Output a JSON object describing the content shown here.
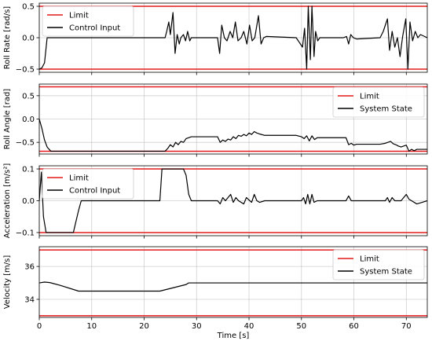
{
  "chart_data": [
    {
      "type": "line",
      "title": "",
      "xlabel": "",
      "ylabel": "Roll Rate [rad/s]",
      "xlim": [
        0,
        74
      ],
      "ylim": [
        -0.55,
        0.55
      ],
      "xticks": [
        0,
        10,
        20,
        30,
        40,
        50,
        60,
        70
      ],
      "xtick_labels": [
        "",
        "",
        "",
        "",
        "",
        "",
        "",
        ""
      ],
      "yticks": [
        -0.5,
        0.0,
        0.5
      ],
      "ytick_labels": [
        "−0.5",
        "0.0",
        "0.5"
      ],
      "grid": true,
      "legend": "top-left",
      "limits": {
        "name": "Limit",
        "color": "#e41a1c",
        "values": [
          0.5,
          -0.5
        ]
      },
      "series": [
        {
          "name": "Control Input",
          "color": "#000000",
          "points": [
            [
              0,
              -0.5
            ],
            [
              0.5,
              -0.48
            ],
            [
              1,
              -0.4
            ],
            [
              1.5,
              0
            ],
            [
              24,
              0
            ],
            [
              24.3,
              0.1
            ],
            [
              24.7,
              0.25
            ],
            [
              25,
              0.05
            ],
            [
              25.5,
              0.4
            ],
            [
              25.9,
              -0.25
            ],
            [
              26.3,
              0.05
            ],
            [
              26.7,
              -0.1
            ],
            [
              27,
              0
            ],
            [
              27.5,
              0.05
            ],
            [
              27.9,
              -0.05
            ],
            [
              28.3,
              0.1
            ],
            [
              28.7,
              -0.05
            ],
            [
              29,
              0
            ],
            [
              34,
              0
            ],
            [
              34.4,
              -0.25
            ],
            [
              34.8,
              0.2
            ],
            [
              35.3,
              0
            ],
            [
              35.8,
              -0.05
            ],
            [
              36.4,
              0.1
            ],
            [
              36.9,
              0
            ],
            [
              37.4,
              0.25
            ],
            [
              37.9,
              -0.05
            ],
            [
              38.5,
              0
            ],
            [
              39,
              0.1
            ],
            [
              39.6,
              -0.1
            ],
            [
              40.1,
              0.2
            ],
            [
              40.6,
              -0.05
            ],
            [
              41.1,
              0
            ],
            [
              41.8,
              0.35
            ],
            [
              42.3,
              -0.1
            ],
            [
              42.8,
              0
            ],
            [
              43.3,
              0.02
            ],
            [
              49,
              0
            ],
            [
              50.2,
              -0.15
            ],
            [
              50.6,
              0.15
            ],
            [
              51,
              -0.5
            ],
            [
              51.3,
              0.5
            ],
            [
              51.7,
              -0.35
            ],
            [
              52,
              0.5
            ],
            [
              52.4,
              -0.3
            ],
            [
              52.7,
              0.1
            ],
            [
              53.1,
              -0.05
            ],
            [
              53.5,
              0
            ],
            [
              58,
              0
            ],
            [
              58.6,
              0.02
            ],
            [
              59,
              -0.1
            ],
            [
              59.4,
              0.05
            ],
            [
              59.9,
              0
            ],
            [
              60.5,
              -0.02
            ],
            [
              65,
              0
            ],
            [
              65.6,
              0.1
            ],
            [
              66,
              0.2
            ],
            [
              66.4,
              0.3
            ],
            [
              66.8,
              -0.2
            ],
            [
              67.3,
              0.1
            ],
            [
              67.8,
              -0.15
            ],
            [
              68.3,
              0
            ],
            [
              68.8,
              -0.3
            ],
            [
              69.3,
              0.02
            ],
            [
              69.9,
              0.3
            ],
            [
              70.3,
              -0.5
            ],
            [
              70.7,
              0.25
            ],
            [
              71.2,
              -0.05
            ],
            [
              71.7,
              0.1
            ],
            [
              72.2,
              0
            ],
            [
              72.7,
              0.05
            ],
            [
              74,
              0
            ]
          ]
        }
      ]
    },
    {
      "type": "line",
      "title": "",
      "xlabel": "",
      "ylabel": "Roll Angle [rad]",
      "xlim": [
        0,
        74
      ],
      "ylim": [
        -0.75,
        0.75
      ],
      "xticks": [
        0,
        10,
        20,
        30,
        40,
        50,
        60,
        70
      ],
      "xtick_labels": [
        "",
        "",
        "",
        "",
        "",
        "",
        "",
        ""
      ],
      "yticks": [
        -0.5,
        0.0,
        0.5
      ],
      "ytick_labels": [
        "−0.5",
        "0.0",
        "0.5"
      ],
      "grid": true,
      "legend": "top-right",
      "limits": {
        "name": "Limit",
        "color": "#e41a1c",
        "values": [
          0.69,
          -0.69
        ]
      },
      "series": [
        {
          "name": "System State",
          "color": "#000000",
          "points": [
            [
              0,
              0
            ],
            [
              0.5,
              -0.2
            ],
            [
              1,
              -0.45
            ],
            [
              1.5,
              -0.6
            ],
            [
              2.2,
              -0.69
            ],
            [
              24,
              -0.69
            ],
            [
              24.5,
              -0.63
            ],
            [
              25,
              -0.55
            ],
            [
              25.5,
              -0.6
            ],
            [
              26,
              -0.5
            ],
            [
              26.5,
              -0.55
            ],
            [
              27,
              -0.48
            ],
            [
              27.5,
              -0.5
            ],
            [
              28,
              -0.42
            ],
            [
              29,
              -0.38
            ],
            [
              34,
              -0.38
            ],
            [
              34.5,
              -0.5
            ],
            [
              35,
              -0.45
            ],
            [
              35.5,
              -0.48
            ],
            [
              36,
              -0.43
            ],
            [
              36.5,
              -0.45
            ],
            [
              37,
              -0.38
            ],
            [
              37.5,
              -0.42
            ],
            [
              38,
              -0.35
            ],
            [
              38.5,
              -0.37
            ],
            [
              39,
              -0.33
            ],
            [
              39.5,
              -0.36
            ],
            [
              40,
              -0.3
            ],
            [
              40.5,
              -0.33
            ],
            [
              41,
              -0.27
            ],
            [
              41.5,
              -0.3
            ],
            [
              42,
              -0.32
            ],
            [
              43,
              -0.35
            ],
            [
              49,
              -0.35
            ],
            [
              50,
              -0.38
            ],
            [
              50.5,
              -0.42
            ],
            [
              51,
              -0.36
            ],
            [
              51.5,
              -0.47
            ],
            [
              52,
              -0.36
            ],
            [
              52.5,
              -0.44
            ],
            [
              53,
              -0.4
            ],
            [
              58.5,
              -0.4
            ],
            [
              59,
              -0.55
            ],
            [
              59.5,
              -0.52
            ],
            [
              60,
              -0.56
            ],
            [
              60.5,
              -0.54
            ],
            [
              65,
              -0.54
            ],
            [
              66,
              -0.52
            ],
            [
              67,
              -0.48
            ],
            [
              67.5,
              -0.53
            ],
            [
              68,
              -0.55
            ],
            [
              68.5,
              -0.58
            ],
            [
              69,
              -0.6
            ],
            [
              70,
              -0.56
            ],
            [
              70.5,
              -0.69
            ],
            [
              71,
              -0.65
            ],
            [
              71.5,
              -0.68
            ],
            [
              72,
              -0.65
            ],
            [
              74,
              -0.65
            ]
          ]
        }
      ]
    },
    {
      "type": "line",
      "title": "",
      "xlabel": "",
      "ylabel": "Acceleration [m/s²]",
      "xlim": [
        0,
        74
      ],
      "ylim": [
        -0.11,
        0.11
      ],
      "xticks": [
        0,
        10,
        20,
        30,
        40,
        50,
        60,
        70
      ],
      "xtick_labels": [
        "",
        "",
        "",
        "",
        "",
        "",
        "",
        ""
      ],
      "yticks": [
        -0.1,
        0.0,
        0.1
      ],
      "ytick_labels": [
        "−0.1",
        "0.0",
        "0.1"
      ],
      "grid": true,
      "legend": "top-left",
      "limits": {
        "name": "Limit",
        "color": "#e41a1c",
        "values": [
          0.1,
          -0.1
        ]
      },
      "series": [
        {
          "name": "Control Input",
          "color": "#000000",
          "points": [
            [
              0,
              0
            ],
            [
              0.4,
              0.09
            ],
            [
              0.8,
              -0.05
            ],
            [
              1.3,
              -0.1
            ],
            [
              6.5,
              -0.1
            ],
            [
              7.5,
              -0.03
            ],
            [
              8,
              0
            ],
            [
              23,
              0
            ],
            [
              23.4,
              0.1
            ],
            [
              27.5,
              0.1
            ],
            [
              28,
              0.08
            ],
            [
              28.5,
              0.02
            ],
            [
              29,
              0
            ],
            [
              34,
              0
            ],
            [
              34.5,
              -0.01
            ],
            [
              35,
              0.01
            ],
            [
              35.5,
              0
            ],
            [
              36.5,
              0.02
            ],
            [
              37,
              -0.005
            ],
            [
              37.5,
              0.01
            ],
            [
              38,
              0
            ],
            [
              39,
              -0.01
            ],
            [
              39.5,
              0.01
            ],
            [
              40.5,
              -0.005
            ],
            [
              41,
              0.02
            ],
            [
              41.5,
              0
            ],
            [
              42,
              -0.005
            ],
            [
              43,
              0
            ],
            [
              50,
              0
            ],
            [
              50.4,
              0.01
            ],
            [
              50.8,
              -0.01
            ],
            [
              51.2,
              0.02
            ],
            [
              51.6,
              -0.01
            ],
            [
              52,
              0.02
            ],
            [
              52.4,
              -0.005
            ],
            [
              53,
              0
            ],
            [
              58.5,
              0
            ],
            [
              59,
              0.015
            ],
            [
              59.5,
              0
            ],
            [
              66,
              0
            ],
            [
              66.4,
              0.01
            ],
            [
              66.8,
              -0.005
            ],
            [
              67.3,
              0.01
            ],
            [
              67.8,
              0
            ],
            [
              69,
              0
            ],
            [
              70,
              0.02
            ],
            [
              70.5,
              0.005
            ],
            [
              71,
              0
            ],
            [
              72,
              -0.01
            ],
            [
              73,
              -0.005
            ],
            [
              74,
              0
            ]
          ]
        }
      ]
    },
    {
      "type": "line",
      "title": "",
      "xlabel": "Time [s]",
      "ylabel": "Velocity [m/s]",
      "xlim": [
        0,
        74
      ],
      "ylim": [
        32.9,
        37.2
      ],
      "xticks": [
        0,
        10,
        20,
        30,
        40,
        50,
        60,
        70
      ],
      "xtick_labels": [
        "0",
        "10",
        "20",
        "30",
        "40",
        "50",
        "60",
        "70"
      ],
      "yticks": [
        34,
        36
      ],
      "ytick_labels": [
        "34",
        "36"
      ],
      "grid": true,
      "legend": "top-right",
      "limits": {
        "name": "Limit",
        "color": "#e41a1c",
        "values": [
          37,
          33
        ]
      },
      "series": [
        {
          "name": "System State",
          "color": "#000000",
          "points": [
            [
              0,
              35
            ],
            [
              1,
              35.05
            ],
            [
              2,
              35.02
            ],
            [
              4,
              34.85
            ],
            [
              7.5,
              34.5
            ],
            [
              23,
              34.5
            ],
            [
              28,
              34.9
            ],
            [
              28.5,
              35
            ],
            [
              74,
              35
            ]
          ]
        }
      ]
    }
  ]
}
